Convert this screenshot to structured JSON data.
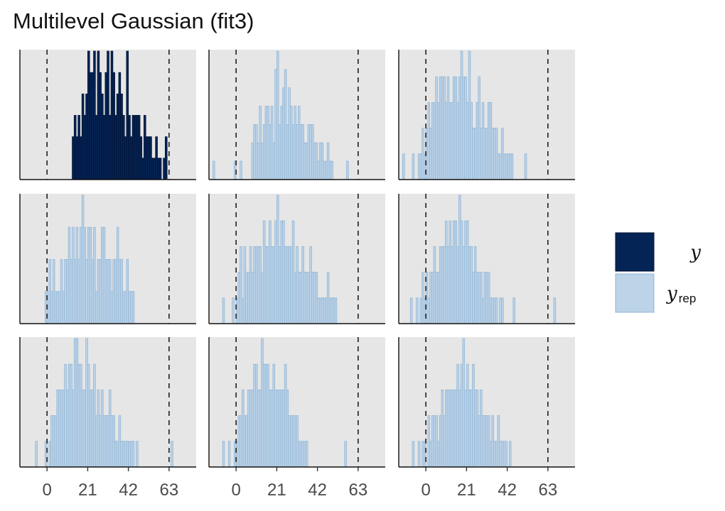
{
  "title": "Multilevel Gaussian (fit3)",
  "colors": {
    "panel_bg": "#e6e6e6",
    "y_fill": "#052456",
    "y_edge": "#011230",
    "yrep_fill": "#bcd3e8",
    "yrep_edge": "#93b6d6"
  },
  "chart_data": {
    "type": "histogram",
    "layout": {
      "rows": 3,
      "cols": 3,
      "shared_x": true
    },
    "xlim": [
      -14,
      77
    ],
    "x_ticks": [
      0,
      21,
      42,
      63
    ],
    "x_tick_labels": [
      "0",
      "21",
      "42",
      "63"
    ],
    "bin_width": 1,
    "reference_lines": [
      0,
      63
    ],
    "reference_line_style": "dashed",
    "y_axis_labels": "hidden",
    "legend": {
      "position": "right",
      "entries": [
        {
          "key": "y",
          "label": "y",
          "subscript": "",
          "color": "#052456"
        },
        {
          "key": "yrep",
          "label": "y",
          "subscript": "rep",
          "color": "#bcd3e8"
        }
      ]
    },
    "panels": [
      {
        "series": "y",
        "heights": [
          0,
          0,
          0,
          0,
          0,
          0,
          0,
          0,
          0,
          0,
          0,
          0,
          0,
          0,
          2,
          3,
          2,
          3,
          2,
          4,
          3,
          4,
          6,
          5,
          5,
          6,
          3,
          6,
          5,
          4,
          3,
          5,
          6,
          3,
          6,
          5,
          3,
          4,
          5,
          4,
          3,
          2,
          6,
          3,
          2,
          3,
          3,
          3,
          3,
          2,
          1,
          3,
          2,
          2,
          2,
          1,
          1,
          2,
          1,
          1,
          0,
          1,
          2,
          0,
          0,
          0
        ]
      },
      {
        "series": "yrep",
        "heights": [
          1,
          0,
          0,
          0,
          0,
          0,
          0,
          0,
          0,
          0,
          0,
          1,
          0,
          0,
          1,
          0,
          0,
          0,
          0,
          0,
          2,
          3,
          3,
          2,
          4,
          2,
          3,
          4,
          4,
          3,
          4,
          2,
          6,
          7,
          3,
          4,
          5,
          6,
          3,
          5,
          4,
          3,
          4,
          3,
          4,
          3,
          3,
          2,
          2,
          3,
          3,
          3,
          2,
          2,
          1,
          2,
          2,
          1,
          1,
          2,
          1,
          1,
          0,
          0,
          0,
          0,
          0,
          0,
          0,
          1,
          0,
          0,
          0,
          0
        ]
      },
      {
        "series": "yrep",
        "heights": [
          1,
          0,
          0,
          0,
          0,
          1,
          0,
          0,
          1,
          1,
          2,
          1,
          2,
          3,
          2,
          3,
          3,
          4,
          3,
          4,
          4,
          4,
          3,
          4,
          3,
          3,
          4,
          4,
          3,
          4,
          5,
          4,
          4,
          3,
          5,
          3,
          2,
          2,
          3,
          4,
          2,
          3,
          2,
          2,
          3,
          3,
          2,
          2,
          2,
          1,
          1,
          2,
          1,
          1,
          1,
          1,
          1,
          0,
          0,
          0,
          0,
          0,
          0,
          1,
          0,
          0
        ]
      },
      {
        "series": "yrep",
        "heights": [
          0,
          0,
          0,
          0,
          0,
          0,
          1,
          1,
          2,
          1,
          2,
          1,
          1,
          1,
          2,
          1,
          2,
          2,
          3,
          2,
          3,
          2,
          3,
          2,
          3,
          4,
          3,
          2,
          3,
          3,
          2,
          3,
          1,
          2,
          2,
          3,
          3,
          2,
          2,
          2,
          1,
          2,
          2,
          3,
          2,
          2,
          1,
          1,
          2,
          1,
          1,
          1,
          0,
          0
        ]
      },
      {
        "series": "yrep",
        "heights": [
          1,
          0,
          0,
          0,
          0,
          1,
          0,
          1,
          2,
          3,
          1,
          3,
          2,
          2,
          3,
          2,
          3,
          3,
          3,
          3,
          2,
          4,
          3,
          3,
          4,
          3,
          3,
          4,
          5,
          3,
          4,
          4,
          3,
          3,
          3,
          3,
          4,
          2,
          3,
          2,
          2,
          3,
          2,
          2,
          2,
          3,
          2,
          2,
          2,
          1,
          1,
          1,
          1,
          1,
          2,
          1,
          1,
          1,
          1,
          0,
          0
        ]
      },
      {
        "series": "yrep",
        "heights": [
          1,
          0,
          0,
          1,
          0,
          1,
          2,
          1,
          2,
          1,
          2,
          2,
          3,
          2,
          2,
          3,
          3,
          3,
          4,
          3,
          4,
          3,
          4,
          4,
          3,
          5,
          4,
          3,
          4,
          4,
          3,
          3,
          2,
          3,
          2,
          2,
          2,
          1,
          2,
          2,
          2,
          1,
          1,
          1,
          1,
          0,
          1,
          1,
          0,
          0,
          0,
          0,
          0,
          1,
          0,
          0,
          0,
          0,
          0,
          0,
          0,
          0,
          0,
          0,
          0,
          0,
          0,
          0,
          0,
          0,
          0,
          0,
          0,
          0,
          1
        ]
      },
      {
        "series": "yrep",
        "heights": [
          0,
          1,
          0,
          0,
          0,
          0,
          1,
          0,
          1,
          2,
          2,
          2,
          3,
          3,
          3,
          3,
          4,
          3,
          4,
          4,
          3,
          5,
          5,
          4,
          4,
          3,
          3,
          5,
          4,
          3,
          3,
          4,
          2,
          3,
          2,
          3,
          2,
          2,
          2,
          3,
          2,
          2,
          1,
          1,
          2,
          1,
          1,
          1,
          1,
          1,
          1,
          1,
          0,
          1,
          0,
          0,
          0,
          0,
          0,
          0,
          0,
          0,
          0,
          0,
          0,
          0,
          0,
          0,
          0,
          0,
          0,
          1
        ]
      },
      {
        "series": "yrep",
        "heights": [
          1,
          0,
          0,
          1,
          0,
          0,
          1,
          1,
          2,
          2,
          3,
          2,
          2,
          3,
          3,
          3,
          4,
          4,
          3,
          3,
          5,
          4,
          4,
          4,
          3,
          3,
          4,
          3,
          3,
          3,
          3,
          3,
          4,
          3,
          2,
          2,
          2,
          2,
          2,
          1,
          1,
          1,
          1,
          1,
          0,
          0,
          0,
          0,
          0,
          0,
          0,
          0,
          0,
          0,
          0,
          0,
          0,
          0,
          0,
          0,
          0,
          0,
          0,
          1
        ]
      },
      {
        "series": "yrep",
        "heights": [
          1,
          0,
          0,
          1,
          0,
          1,
          1,
          0,
          2,
          1,
          2,
          2,
          2,
          1,
          2,
          3,
          2,
          3,
          3,
          3,
          3,
          3,
          3,
          4,
          3,
          4,
          5,
          3,
          4,
          3,
          3,
          4,
          3,
          3,
          2,
          3,
          2,
          2,
          2,
          2,
          1,
          2,
          1,
          1,
          2,
          1,
          1,
          1,
          1,
          0,
          1,
          0,
          0,
          0,
          0,
          0,
          0,
          0,
          0,
          0,
          0,
          0,
          0,
          0,
          0,
          0,
          0,
          0,
          0,
          0
        ]
      }
    ],
    "panel_bin_start": [
      -1,
      -12,
      -12,
      -7,
      -7,
      -8,
      -7,
      -7,
      -7
    ],
    "panel_ymax": [
      6,
      7,
      5,
      4,
      5,
      5,
      5,
      5,
      5
    ]
  }
}
